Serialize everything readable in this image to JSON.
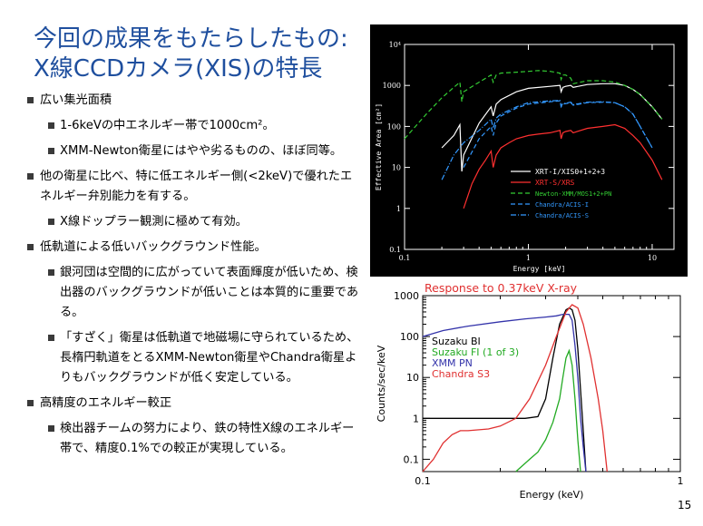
{
  "slide": {
    "title_line1": "今回の成果をもたらしたもの:",
    "title_line2": "X線CCDカメラ(XIS)の特長",
    "page_number": "15",
    "bullets": [
      {
        "level": 1,
        "text": "広い集光面積"
      },
      {
        "level": 2,
        "text": "1-6keVの中エネルギー帯で1000cm²。"
      },
      {
        "level": 2,
        "text": "XMM-Newton衛星にはやや劣るものの、ほぼ同等。"
      },
      {
        "level": 1,
        "text": "他の衛星に比べ、特に低エネルギー側(<2keV)で優れたエネルギー弁別能力を有する。"
      },
      {
        "level": 2,
        "text": "X線ドップラー観測に極めて有効。"
      },
      {
        "level": 1,
        "text": "低軌道による低いバックグラウンド性能。"
      },
      {
        "level": 2,
        "text": "銀河団は空間的に広がっていて表面輝度が低いため、検出器のバックグラウンドが低いことは本質的に重要である。"
      },
      {
        "level": 2,
        "text": "「すざく」衛星は低軌道で地磁場に守られているため、長楕円軌道をとるXMM-Newton衛星やChandra衛星よりもバックグラウンドが低く安定している。"
      },
      {
        "level": 1,
        "text": "高精度のエネルギー較正"
      },
      {
        "level": 2,
        "text": "検出器チームの努力により、鉄の特性X線のエネルギー帯で、精度0.1%での較正が実現している。"
      }
    ]
  },
  "chart_data": [
    {
      "type": "line",
      "xlabel": "Energy [keV]",
      "ylabel": "Effective Area [cm²]",
      "xscale": "log",
      "yscale": "log",
      "xlim": [
        0.1,
        15
      ],
      "ylim": [
        0.1,
        10000
      ],
      "xtick_labels": [
        "0.1",
        "1",
        "10"
      ],
      "ytick_labels": [
        "0.1",
        "1",
        "10",
        "100",
        "1000",
        "10⁴"
      ],
      "background": "#000000",
      "legend_position": "lower-right",
      "series": [
        {
          "name": "XRT-I/XIS0+1+2+3",
          "color": "#ffffff",
          "dash": "solid",
          "x": [
            0.2,
            0.25,
            0.28,
            0.29,
            0.3,
            0.4,
            0.5,
            0.52,
            0.55,
            0.6,
            0.8,
            1.0,
            1.5,
            1.8,
            1.84,
            1.9,
            2.0,
            2.2,
            2.3,
            3,
            4,
            5,
            6,
            7,
            8,
            10,
            12
          ],
          "y": [
            30,
            60,
            110,
            8,
            20,
            120,
            300,
            180,
            350,
            450,
            700,
            850,
            950,
            1000,
            700,
            900,
            950,
            1000,
            900,
            1050,
            1100,
            1100,
            1000,
            800,
            600,
            300,
            150
          ]
        },
        {
          "name": "XRT-S/XRS",
          "color": "#ff3030",
          "dash": "solid",
          "x": [
            0.3,
            0.35,
            0.4,
            0.45,
            0.5,
            0.52,
            0.55,
            0.6,
            0.7,
            0.8,
            1.0,
            1.2,
            1.5,
            1.8,
            1.84,
            1.9,
            2.0,
            2.2,
            2.3,
            3,
            4,
            5,
            6,
            7,
            8,
            10,
            12
          ],
          "y": [
            1,
            4,
            9,
            15,
            25,
            10,
            20,
            30,
            40,
            50,
            60,
            65,
            70,
            80,
            50,
            70,
            75,
            80,
            70,
            90,
            100,
            110,
            90,
            60,
            40,
            15,
            5
          ]
        },
        {
          "name": "Newton-XMM/MOS1+2+PN",
          "color": "#33cc33",
          "dash": "dashed",
          "x": [
            0.1,
            0.15,
            0.2,
            0.25,
            0.28,
            0.29,
            0.3,
            0.4,
            0.5,
            0.52,
            0.55,
            0.6,
            0.8,
            1.0,
            1.2,
            1.5,
            1.8,
            1.84,
            1.9,
            2.0,
            2.2,
            2.3,
            3,
            4,
            5,
            6,
            7,
            8,
            10,
            12
          ],
          "y": [
            50,
            200,
            500,
            900,
            1200,
            400,
            700,
            1200,
            1800,
            1200,
            1800,
            2000,
            2100,
            2200,
            2300,
            2200,
            2000,
            1400,
            1800,
            1800,
            1500,
            1100,
            1300,
            1300,
            1200,
            1000,
            800,
            600,
            300,
            150
          ]
        },
        {
          "name": "Chandra/ACIS-I",
          "color": "#3399ff",
          "dash": "dashed",
          "x": [
            0.3,
            0.4,
            0.5,
            0.52,
            0.55,
            0.6,
            0.8,
            1.0,
            1.5,
            1.8,
            1.84,
            1.9,
            2.0,
            2.2,
            2.3,
            3,
            4,
            5,
            6,
            7,
            8,
            10
          ],
          "y": [
            10,
            50,
            100,
            60,
            120,
            180,
            280,
            350,
            400,
            420,
            300,
            350,
            360,
            380,
            330,
            380,
            390,
            380,
            300,
            200,
            100,
            30
          ]
        },
        {
          "name": "Chandra/ACIS-S",
          "color": "#3399ff",
          "dash": "dashdot",
          "x": [
            0.2,
            0.25,
            0.3,
            0.4,
            0.5,
            0.52,
            0.55,
            0.6,
            0.8,
            1.0,
            1.5,
            1.8,
            1.84,
            1.9,
            2.0,
            2.2,
            2.3,
            3,
            4,
            5,
            6,
            7,
            8,
            10
          ],
          "y": [
            5,
            20,
            40,
            80,
            150,
            90,
            160,
            200,
            300,
            380,
            420,
            430,
            320,
            360,
            370,
            390,
            340,
            390,
            400,
            380,
            300,
            200,
            100,
            30
          ]
        }
      ]
    },
    {
      "type": "line",
      "title": "Response to 0.37keV X-ray",
      "title_color": "#e03030",
      "xlabel": "Energy (keV)",
      "ylabel": "Counts/sec/keV",
      "xscale": "log",
      "yscale": "log",
      "xlim": [
        0.1,
        1
      ],
      "ylim": [
        0.05,
        1000
      ],
      "xtick_labels": [
        "0.1",
        "1"
      ],
      "ytick_labels": [
        "0.1",
        "1",
        "10",
        "100",
        "1000"
      ],
      "legend_position": "upper-left",
      "series": [
        {
          "name": "Suzaku BI",
          "color": "#000000",
          "x": [
            0.1,
            0.15,
            0.2,
            0.25,
            0.28,
            0.3,
            0.32,
            0.34,
            0.36,
            0.37,
            0.38,
            0.39,
            0.4,
            0.41,
            0.42,
            0.43
          ],
          "y": [
            1,
            1,
            1,
            1,
            1.1,
            3,
            30,
            200,
            450,
            500,
            450,
            250,
            50,
            5,
            0.5,
            0.05
          ]
        },
        {
          "name": "Suzaku FI (1 of 3)",
          "color": "#22aa22",
          "x": [
            0.23,
            0.26,
            0.28,
            0.3,
            0.32,
            0.34,
            0.35,
            0.36,
            0.37,
            0.38,
            0.39,
            0.4,
            0.41
          ],
          "y": [
            0.05,
            0.1,
            0.15,
            0.3,
            0.8,
            3,
            10,
            30,
            45,
            20,
            3,
            0.3,
            0.05
          ]
        },
        {
          "name": "XMM PN",
          "color": "#3333aa",
          "x": [
            0.1,
            0.12,
            0.15,
            0.2,
            0.25,
            0.3,
            0.33,
            0.35,
            0.37,
            0.38,
            0.39,
            0.4,
            0.41,
            0.42,
            0.43
          ],
          "y": [
            100,
            140,
            180,
            230,
            270,
            300,
            320,
            350,
            350,
            250,
            60,
            10,
            1,
            0.2,
            0.05
          ]
        },
        {
          "name": "Chandra S3",
          "color": "#e03030",
          "x": [
            0.1,
            0.11,
            0.12,
            0.13,
            0.14,
            0.15,
            0.18,
            0.2,
            0.23,
            0.26,
            0.3,
            0.33,
            0.36,
            0.38,
            0.4,
            0.42,
            0.45,
            0.48,
            0.5,
            0.52
          ],
          "y": [
            0.05,
            0.1,
            0.25,
            0.4,
            0.5,
            0.5,
            0.55,
            0.65,
            1,
            3,
            20,
            100,
            400,
            600,
            500,
            200,
            30,
            3,
            0.5,
            0.05
          ]
        }
      ]
    }
  ]
}
